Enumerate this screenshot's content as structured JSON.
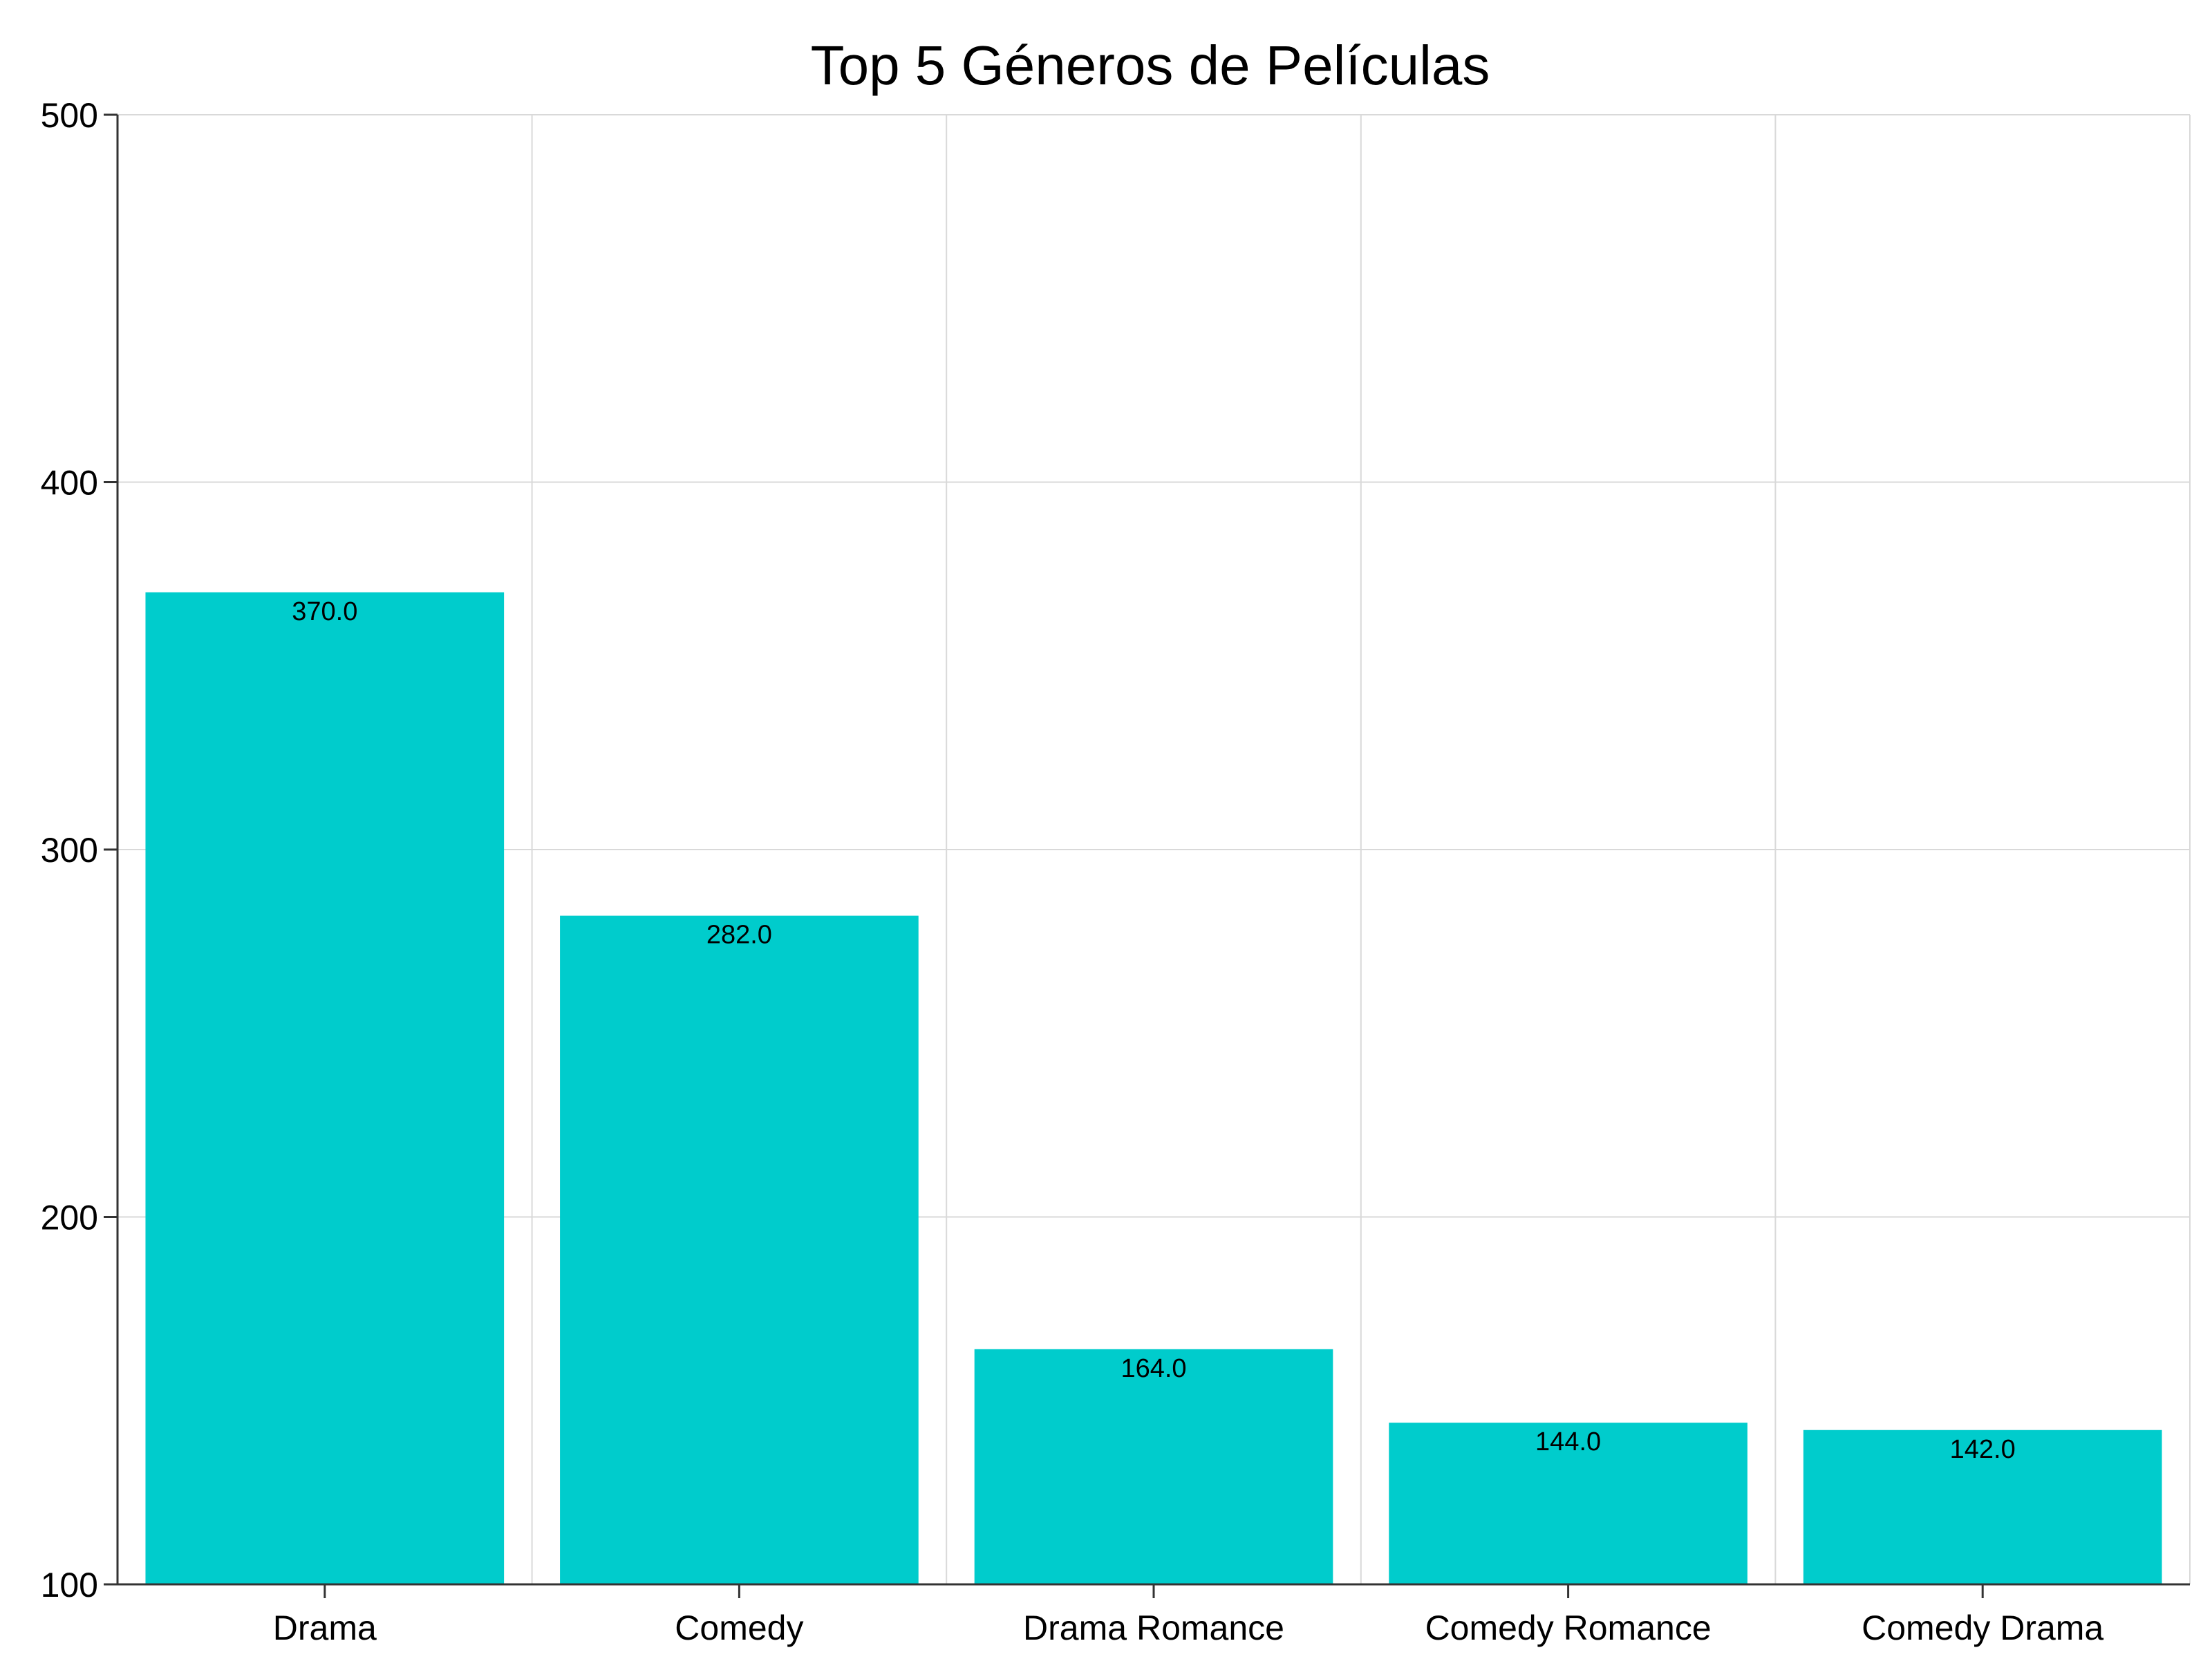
{
  "chart_data": {
    "type": "bar",
    "title": "Top 5 Géneros de Películas",
    "xlabel": "",
    "ylabel": "",
    "categories": [
      "Drama",
      "Comedy",
      "Drama Romance",
      "Comedy Romance",
      "Comedy Drama"
    ],
    "values": [
      370,
      282,
      164,
      144,
      142
    ],
    "value_labels": [
      "370.0",
      "282.0",
      "164.0",
      "144.0",
      "142.0"
    ],
    "ylim": [
      100,
      500
    ],
    "yticks": [
      100,
      200,
      300,
      400,
      500
    ],
    "ytick_labels": [
      "100",
      "200",
      "300",
      "400",
      "500"
    ],
    "grid": true,
    "legend": "none",
    "colors": {
      "bar": "#00CCCC",
      "grid": "#d9d9d9",
      "axis": "#333333"
    }
  }
}
